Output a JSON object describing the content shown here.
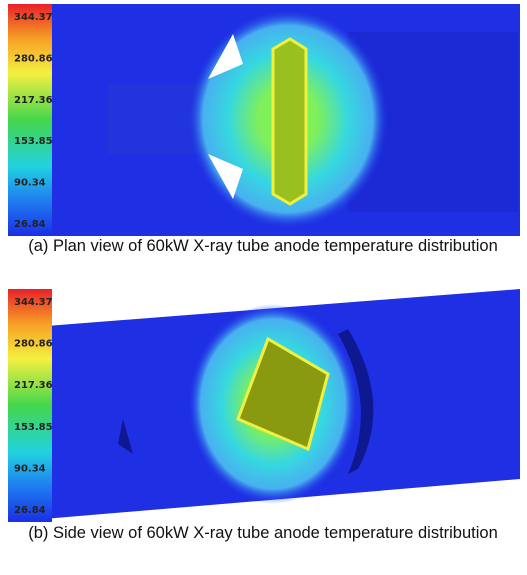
{
  "panels": [
    {
      "scale_labels": [
        "344.37",
        "280.86",
        "217.36",
        "153.85",
        "90.34",
        "26.84"
      ],
      "caption": "(a) Plan view of 60kW X-ray tube anode temperature distribution"
    },
    {
      "scale_labels": [
        "344.37",
        "280.86",
        "217.36",
        "153.85",
        "90.34",
        "26.84"
      ],
      "caption": "(b) Side view of 60kW X-ray tube anode temperature distribution"
    }
  ]
}
